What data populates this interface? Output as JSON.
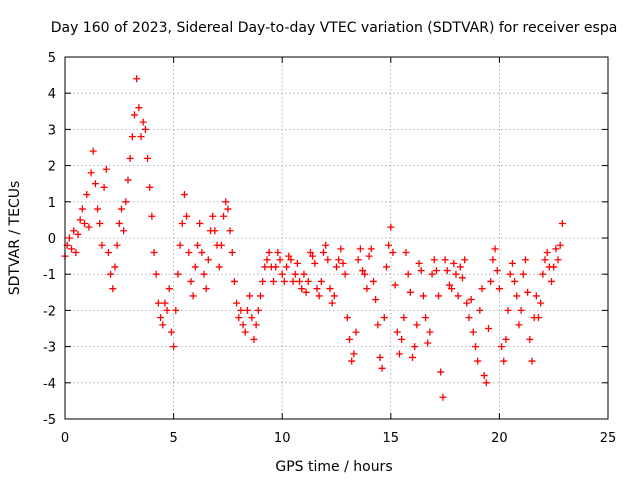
{
  "chart_data": {
    "type": "scatter",
    "title": "Day 160 of 2023, Sidereal Day-to-day VTEC variation (SDTVAR) for receiver espa",
    "xlabel": "GPS time / hours",
    "ylabel": "SDTVAR / TECUs",
    "xlim": [
      0,
      25
    ],
    "ylim": [
      -5,
      5
    ],
    "x_ticks": [
      "0",
      "5",
      "10",
      "15",
      "20",
      "25"
    ],
    "y_ticks": [
      "5",
      "4",
      "3",
      "2",
      "1",
      "0",
      "-1",
      "-2",
      "-3",
      "-4",
      "-5"
    ],
    "grid": true,
    "marker": "+",
    "series_color": "#ff0000",
    "series": [
      {
        "name": "SDTVAR",
        "x": [
          0.0,
          0.1,
          0.2,
          0.3,
          0.4,
          0.5,
          0.6,
          0.7,
          0.8,
          0.9,
          1.0,
          1.1,
          1.2,
          1.3,
          1.4,
          1.5,
          1.6,
          1.7,
          1.8,
          1.9,
          2.0,
          2.1,
          2.2,
          2.3,
          2.4,
          2.5,
          2.6,
          2.7,
          2.8,
          2.9,
          3.0,
          3.1,
          3.2,
          3.3,
          3.4,
          3.5,
          3.6,
          3.7,
          3.8,
          3.9,
          4.0,
          4.1,
          4.2,
          4.3,
          4.4,
          4.5,
          4.6,
          4.7,
          4.8,
          4.9,
          5.0,
          5.1,
          5.2,
          5.3,
          5.4,
          5.5,
          5.6,
          5.7,
          5.8,
          5.9,
          6.0,
          6.1,
          6.2,
          6.3,
          6.4,
          6.5,
          6.6,
          6.7,
          6.8,
          6.9,
          7.0,
          7.1,
          7.2,
          7.3,
          7.4,
          7.5,
          7.6,
          7.7,
          7.8,
          7.9,
          8.0,
          8.1,
          8.2,
          8.3,
          8.4,
          8.5,
          8.6,
          8.7,
          8.8,
          8.9,
          9.0,
          9.1,
          9.2,
          9.3,
          9.4,
          9.5,
          9.6,
          9.7,
          9.8,
          9.9,
          10.0,
          10.1,
          10.2,
          10.3,
          10.4,
          10.5,
          10.6,
          10.7,
          10.8,
          10.9,
          11.0,
          11.1,
          11.2,
          11.3,
          11.4,
          11.5,
          11.6,
          11.7,
          11.8,
          11.9,
          12.0,
          12.1,
          12.2,
          12.3,
          12.4,
          12.5,
          12.6,
          12.7,
          12.8,
          12.9,
          13.0,
          13.1,
          13.2,
          13.3,
          13.4,
          13.5,
          13.6,
          13.7,
          13.8,
          13.9,
          14.0,
          14.1,
          14.2,
          14.3,
          14.4,
          14.5,
          14.6,
          14.7,
          14.8,
          14.9,
          15.0,
          15.1,
          15.2,
          15.3,
          15.4,
          15.5,
          15.6,
          15.7,
          15.8,
          15.9,
          16.0,
          16.1,
          16.2,
          16.3,
          16.4,
          16.5,
          16.6,
          16.7,
          16.8,
          16.9,
          17.0,
          17.1,
          17.2,
          17.3,
          17.4,
          17.5,
          17.6,
          17.7,
          17.8,
          17.9,
          18.0,
          18.1,
          18.2,
          18.3,
          18.4,
          18.5,
          18.6,
          18.7,
          18.8,
          18.9,
          19.0,
          19.1,
          19.2,
          19.3,
          19.4,
          19.5,
          19.6,
          19.7,
          19.8,
          19.9,
          20.0,
          20.1,
          20.2,
          20.3,
          20.4,
          20.5,
          20.6,
          20.7,
          20.8,
          20.9,
          21.0,
          21.1,
          21.2,
          21.3,
          21.4,
          21.5,
          21.6,
          21.7,
          21.8,
          21.9,
          22.0,
          22.1,
          22.2,
          22.3,
          22.4,
          22.5,
          22.6,
          22.7,
          22.8,
          22.9
        ],
        "y": [
          -0.5,
          -0.2,
          0.0,
          -0.3,
          0.2,
          -0.4,
          0.1,
          0.5,
          0.8,
          0.4,
          1.2,
          0.3,
          1.8,
          2.4,
          1.5,
          0.8,
          0.4,
          -0.2,
          1.4,
          1.9,
          -0.4,
          -1.0,
          -1.4,
          -0.8,
          -0.2,
          0.4,
          0.8,
          0.2,
          1.0,
          1.6,
          2.2,
          2.8,
          3.4,
          4.4,
          3.6,
          2.8,
          3.2,
          3.0,
          2.2,
          1.4,
          0.6,
          -0.4,
          -1.0,
          -1.8,
          -2.2,
          -2.4,
          -1.8,
          -2.0,
          -1.4,
          -2.6,
          -3.0,
          -2.0,
          -1.0,
          -0.2,
          0.4,
          1.2,
          0.6,
          -0.4,
          -1.2,
          -1.6,
          -0.8,
          -0.2,
          0.4,
          -0.4,
          -1.0,
          -1.4,
          -0.6,
          0.2,
          0.6,
          0.2,
          -0.2,
          -0.8,
          -0.2,
          0.6,
          1.0,
          0.8,
          0.2,
          -0.4,
          -1.2,
          -1.8,
          -2.2,
          -2.0,
          -2.4,
          -2.6,
          -2.0,
          -1.6,
          -2.2,
          -2.8,
          -2.4,
          -2.0,
          -1.6,
          -1.2,
          -0.8,
          -0.6,
          -0.4,
          -0.8,
          -1.2,
          -0.8,
          -0.4,
          -0.6,
          -1.0,
          -1.2,
          -0.8,
          -0.5,
          -0.6,
          -1.2,
          -1.0,
          -0.7,
          -1.2,
          -1.4,
          -1.0,
          -1.5,
          -1.2,
          -0.4,
          -0.5,
          -0.7,
          -1.4,
          -1.6,
          -1.2,
          -0.4,
          -0.2,
          -0.6,
          -1.4,
          -1.8,
          -1.6,
          -0.8,
          -0.6,
          -0.3,
          -0.7,
          -1.0,
          -2.2,
          -2.8,
          -3.4,
          -3.2,
          -2.6,
          -0.6,
          -0.3,
          -0.9,
          -1.0,
          -1.4,
          -0.5,
          -0.3,
          -1.2,
          -1.7,
          -2.4,
          -3.3,
          -3.6,
          -2.2,
          -0.8,
          -0.2,
          0.3,
          -0.4,
          -1.3,
          -2.6,
          -3.2,
          -2.8,
          -2.2,
          -0.4,
          -1.0,
          -1.5,
          -3.3,
          -3.0,
          -2.4,
          -0.7,
          -0.9,
          -1.6,
          -2.2,
          -2.9,
          -2.6,
          -1.0,
          -0.6,
          -0.9,
          -1.6,
          -3.7,
          -4.4,
          -0.6,
          -0.9,
          -1.3,
          -1.4,
          -0.7,
          -1.0,
          -1.6,
          -0.8,
          -1.1,
          -0.6,
          -1.8,
          -2.2,
          -1.7,
          -2.6,
          -3.0,
          -3.4,
          -2.0,
          -1.4,
          -3.8,
          -4.0,
          -2.5,
          -1.2,
          -0.6,
          -0.3,
          -0.9,
          -1.4,
          -3.0,
          -3.4,
          -2.8,
          -2.0,
          -1.0,
          -0.7,
          -1.2,
          -1.6,
          -2.4,
          -2.0,
          -1.0,
          -0.6,
          -1.5,
          -2.8,
          -3.4,
          -2.2,
          -1.6,
          -2.2,
          -1.8,
          -1.0,
          -0.6,
          -0.4,
          -0.8,
          -1.2,
          -0.8,
          -0.3,
          -0.6,
          -0.2,
          0.4
        ]
      }
    ]
  }
}
